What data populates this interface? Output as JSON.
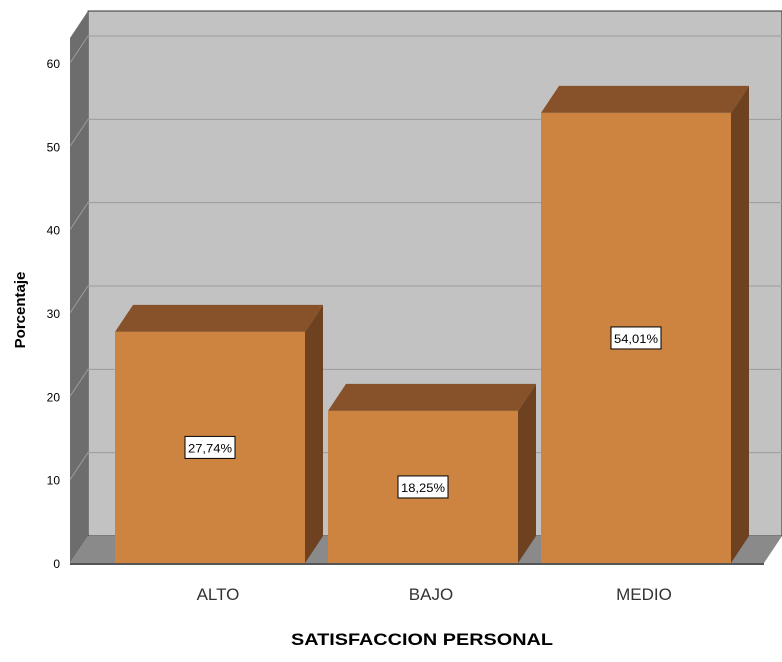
{
  "chart_data": {
    "type": "bar",
    "categories": [
      "ALTO",
      "BAJO",
      "MEDIO"
    ],
    "values": [
      27.74,
      18.25,
      54.01
    ],
    "data_labels": [
      "27,74%",
      "18,25%",
      "54,01%"
    ],
    "xlabel": "SATISFACCION PERSONAL",
    "ylabel": "Porcentaje",
    "ylim": [
      0,
      60
    ],
    "yticks": [
      "0",
      "10",
      "20",
      "30",
      "40",
      "50",
      "60"
    ],
    "grid": true,
    "style": "3d",
    "colors": {
      "bar_front": "#cc8440",
      "bar_top": "#87522a",
      "bar_side": "#6e4220",
      "plot_back": "#c2c2c2",
      "plot_side_wall": "#6d6d6d",
      "plot_floor": "#8a8a8a",
      "grid": "#9c9c9c"
    }
  }
}
